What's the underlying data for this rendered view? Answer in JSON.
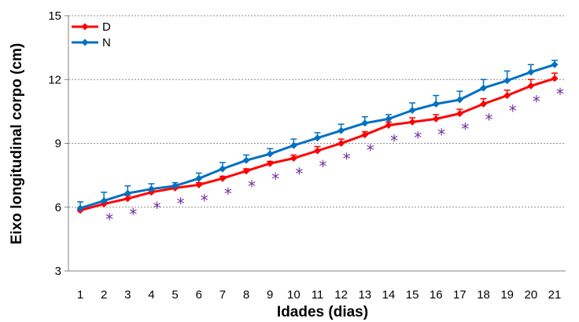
{
  "chart_data": {
    "type": "line",
    "xlabel": "Idades (dias)",
    "ylabel": "Eixo longitudinal corpo (cm)",
    "ylim": [
      3,
      15
    ],
    "yticks": [
      "3",
      "6",
      "9",
      "12",
      "15"
    ],
    "x": [
      1,
      2,
      3,
      4,
      5,
      6,
      7,
      8,
      9,
      10,
      11,
      12,
      13,
      14,
      15,
      16,
      17,
      18,
      19,
      20,
      21
    ],
    "xticks": [
      "1",
      "2",
      "3",
      "4",
      "5",
      "6",
      "7",
      "8",
      "9",
      "10",
      "11",
      "12",
      "13",
      "14",
      "15",
      "16",
      "17",
      "18",
      "19",
      "20",
      "21"
    ],
    "grid": "horizontal dashed",
    "legend_position": "top-left",
    "significance_marker": "*",
    "significant_days": [
      2,
      3,
      4,
      5,
      6,
      7,
      8,
      9,
      10,
      11,
      12,
      13,
      14,
      15,
      16,
      17,
      18,
      19,
      20,
      21
    ],
    "series": [
      {
        "name": "D",
        "color": "#ff0000",
        "values": [
          5.85,
          6.15,
          6.4,
          6.7,
          6.9,
          7.05,
          7.35,
          7.7,
          8.05,
          8.3,
          8.65,
          9.0,
          9.4,
          9.85,
          10.0,
          10.15,
          10.4,
          10.85,
          11.25,
          11.7,
          12.05
        ],
        "errors": [
          0.1,
          0.1,
          0.15,
          0.1,
          0.1,
          0.1,
          0.1,
          0.1,
          0.1,
          0.15,
          0.2,
          0.2,
          0.15,
          0.15,
          0.2,
          0.2,
          0.2,
          0.25,
          0.25,
          0.3,
          0.25
        ]
      },
      {
        "name": "N",
        "color": "#0070c0",
        "values": [
          5.95,
          6.3,
          6.65,
          6.85,
          7.0,
          7.35,
          7.8,
          8.2,
          8.5,
          8.9,
          9.25,
          9.6,
          9.95,
          10.15,
          10.55,
          10.85,
          11.05,
          11.6,
          11.95,
          12.35,
          12.7
        ],
        "errors": [
          0.3,
          0.4,
          0.35,
          0.25,
          0.15,
          0.25,
          0.3,
          0.25,
          0.25,
          0.3,
          0.25,
          0.3,
          0.3,
          0.2,
          0.35,
          0.4,
          0.4,
          0.4,
          0.45,
          0.35,
          0.2
        ]
      }
    ]
  }
}
